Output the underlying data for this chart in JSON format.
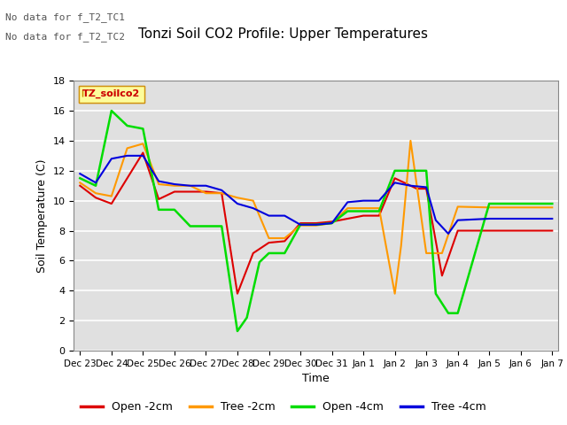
{
  "title": "Tonzi Soil CO2 Profile: Upper Temperatures",
  "xlabel": "Time",
  "ylabel": "Soil Temperature (C)",
  "ylim": [
    0,
    18
  ],
  "yticks": [
    0,
    2,
    4,
    6,
    8,
    10,
    12,
    14,
    16,
    18
  ],
  "no_data_text": [
    "No data for f_T2_TC1",
    "No data for f_T2_TC2"
  ],
  "legend_box_label": "TZ_soilco2",
  "legend_box_color": "#ffff99",
  "legend_box_border": "#cc8800",
  "background_color": "#e0e0e0",
  "xtick_labels": [
    "Dec 23",
    "Dec 24",
    "Dec 25",
    "Dec 26",
    "Dec 27",
    "Dec 28",
    "Dec 29",
    "Dec 30",
    "Dec 31",
    "Jan 1",
    "Jan 2",
    "Jan 3",
    "Jan 4",
    "Jan 5",
    "Jan 6",
    "Jan 7"
  ],
  "open_2cm_x": [
    0,
    0.5,
    1,
    1.5,
    2,
    2.5,
    3,
    3.5,
    4,
    4.5,
    5,
    5.5,
    6,
    6.5,
    7,
    7.5,
    8,
    8.5,
    9,
    9.5,
    10,
    10.3,
    10.7,
    11,
    11.5,
    12,
    13,
    14,
    15
  ],
  "open_2cm_y": [
    11.0,
    10.2,
    9.8,
    11.5,
    13.2,
    10.1,
    10.6,
    10.6,
    10.6,
    10.5,
    3.8,
    6.5,
    7.2,
    7.3,
    8.5,
    8.5,
    8.6,
    8.8,
    9.0,
    9.0,
    11.5,
    11.2,
    10.8,
    10.8,
    5.0,
    8.0,
    8.0,
    8.0,
    8.0
  ],
  "tree_2cm_x": [
    0,
    0.5,
    1,
    1.5,
    2,
    2.5,
    3,
    3.5,
    4,
    4.5,
    5,
    5.5,
    6,
    6.5,
    7,
    7.5,
    8,
    8.5,
    9,
    9.5,
    10,
    10.2,
    10.5,
    11,
    11.5,
    12,
    13,
    14,
    15
  ],
  "tree_2cm_y": [
    11.2,
    10.5,
    10.3,
    13.5,
    13.8,
    11.1,
    11.0,
    11.0,
    10.5,
    10.5,
    10.2,
    10.0,
    7.5,
    7.5,
    8.35,
    8.35,
    8.5,
    9.5,
    9.5,
    9.5,
    3.8,
    7.0,
    14.0,
    6.5,
    6.5,
    9.6,
    9.55,
    9.55,
    9.55
  ],
  "open_4cm_x": [
    0,
    0.5,
    1,
    1.5,
    2,
    2.5,
    3,
    3.5,
    4,
    4.5,
    5,
    5.3,
    5.7,
    6,
    6.5,
    7,
    7.5,
    8,
    8.5,
    9,
    9.5,
    10,
    10.5,
    11,
    11.3,
    11.7,
    12,
    13,
    14,
    15
  ],
  "open_4cm_y": [
    11.5,
    11.0,
    16.0,
    15.0,
    14.8,
    9.4,
    9.4,
    8.3,
    8.3,
    8.3,
    1.3,
    2.2,
    5.9,
    6.5,
    6.5,
    8.4,
    8.4,
    8.5,
    9.3,
    9.3,
    9.3,
    12.0,
    12.0,
    12.0,
    3.8,
    2.5,
    2.5,
    9.8,
    9.8,
    9.8
  ],
  "tree_4cm_x": [
    0,
    0.5,
    1,
    1.5,
    2,
    2.5,
    3,
    3.5,
    4,
    4.5,
    5,
    5.5,
    6,
    6.5,
    7,
    7.5,
    8,
    8.5,
    9,
    9.5,
    10,
    10.5,
    11,
    11.3,
    11.7,
    12,
    13,
    14,
    15
  ],
  "tree_4cm_y": [
    11.8,
    11.2,
    12.8,
    13.0,
    13.0,
    11.3,
    11.1,
    11.0,
    11.0,
    10.7,
    9.8,
    9.5,
    9.0,
    9.0,
    8.4,
    8.4,
    8.5,
    9.9,
    10.0,
    10.0,
    11.2,
    11.0,
    10.9,
    8.7,
    7.8,
    8.7,
    8.8,
    8.8,
    8.8
  ],
  "series_labels": {
    "open_2cm": "Open -2cm",
    "tree_2cm": "Tree -2cm",
    "open_4cm": "Open -4cm",
    "tree_4cm": "Tree -4cm"
  },
  "series_colors": {
    "open_2cm": "#dd0000",
    "tree_2cm": "#ff9900",
    "open_4cm": "#00dd00",
    "tree_4cm": "#0000dd"
  }
}
